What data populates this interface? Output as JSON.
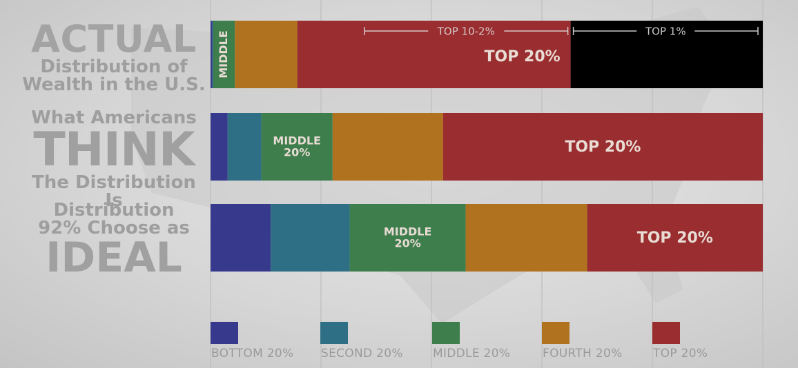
{
  "row_labels": {
    "actual": {
      "line1": "ACTUAL",
      "line2": "Distribution of",
      "line3": "Wealth in the U.S."
    },
    "think": {
      "line1": "What Americans",
      "line2": "THINK",
      "line3": "The Distribution Is"
    },
    "ideal": {
      "line1": "Distribution",
      "line2": "92% Choose as",
      "line3": "IDEAL"
    }
  },
  "colors": {
    "bottom": "#373a8c",
    "second": "#2e6f86",
    "middle": "#3e7d4c",
    "fourth": "#b0721f",
    "top": "#992d2f",
    "top1": "#000000",
    "bar_text": "#e8dcd4",
    "grid": "#bdbdbd"
  },
  "chart_data": {
    "type": "bar",
    "orientation": "horizontal",
    "stacked": true,
    "xlim": [
      0,
      100
    ],
    "grid": true,
    "legend_placement": "bottom",
    "categories": [
      "ACTUAL",
      "THINK",
      "IDEAL"
    ],
    "series": [
      {
        "name": "BOTTOM 20%",
        "color_key": "bottom",
        "values": [
          0.3,
          3.1,
          10.9
        ]
      },
      {
        "name": "SECOND 20%",
        "color_key": "second",
        "values": [
          0.2,
          6.1,
          14.3
        ]
      },
      {
        "name": "MIDDLE 20%",
        "color_key": "middle",
        "values": [
          3.9,
          12.9,
          21.0
        ]
      },
      {
        "name": "FOURTH 20%",
        "color_key": "fourth",
        "values": [
          11.3,
          20.0,
          22.0
        ]
      },
      {
        "name": "TOP 20%",
        "color_key": "top",
        "values": [
          84.3,
          57.9,
          31.8
        ]
      }
    ],
    "top_20_breakdown_actual": {
      "top_10_2": 49.5,
      "top_1": 34.8
    },
    "bar_labels": {
      "actual_middle": "MIDDLE",
      "actual_top": "TOP 20%",
      "actual_top_10_2": "TOP 10-2%",
      "actual_top_1": "TOP 1%",
      "think_middle_1": "MIDDLE",
      "think_middle_2": "20%",
      "think_top": "TOP 20%",
      "ideal_middle_1": "MIDDLE",
      "ideal_middle_2": "20%",
      "ideal_top": "TOP 20%"
    },
    "legend": [
      "BOTTOM 20%",
      "SECOND 20%",
      "MIDDLE 20%",
      "FOURTH 20%",
      "TOP 20%"
    ]
  }
}
